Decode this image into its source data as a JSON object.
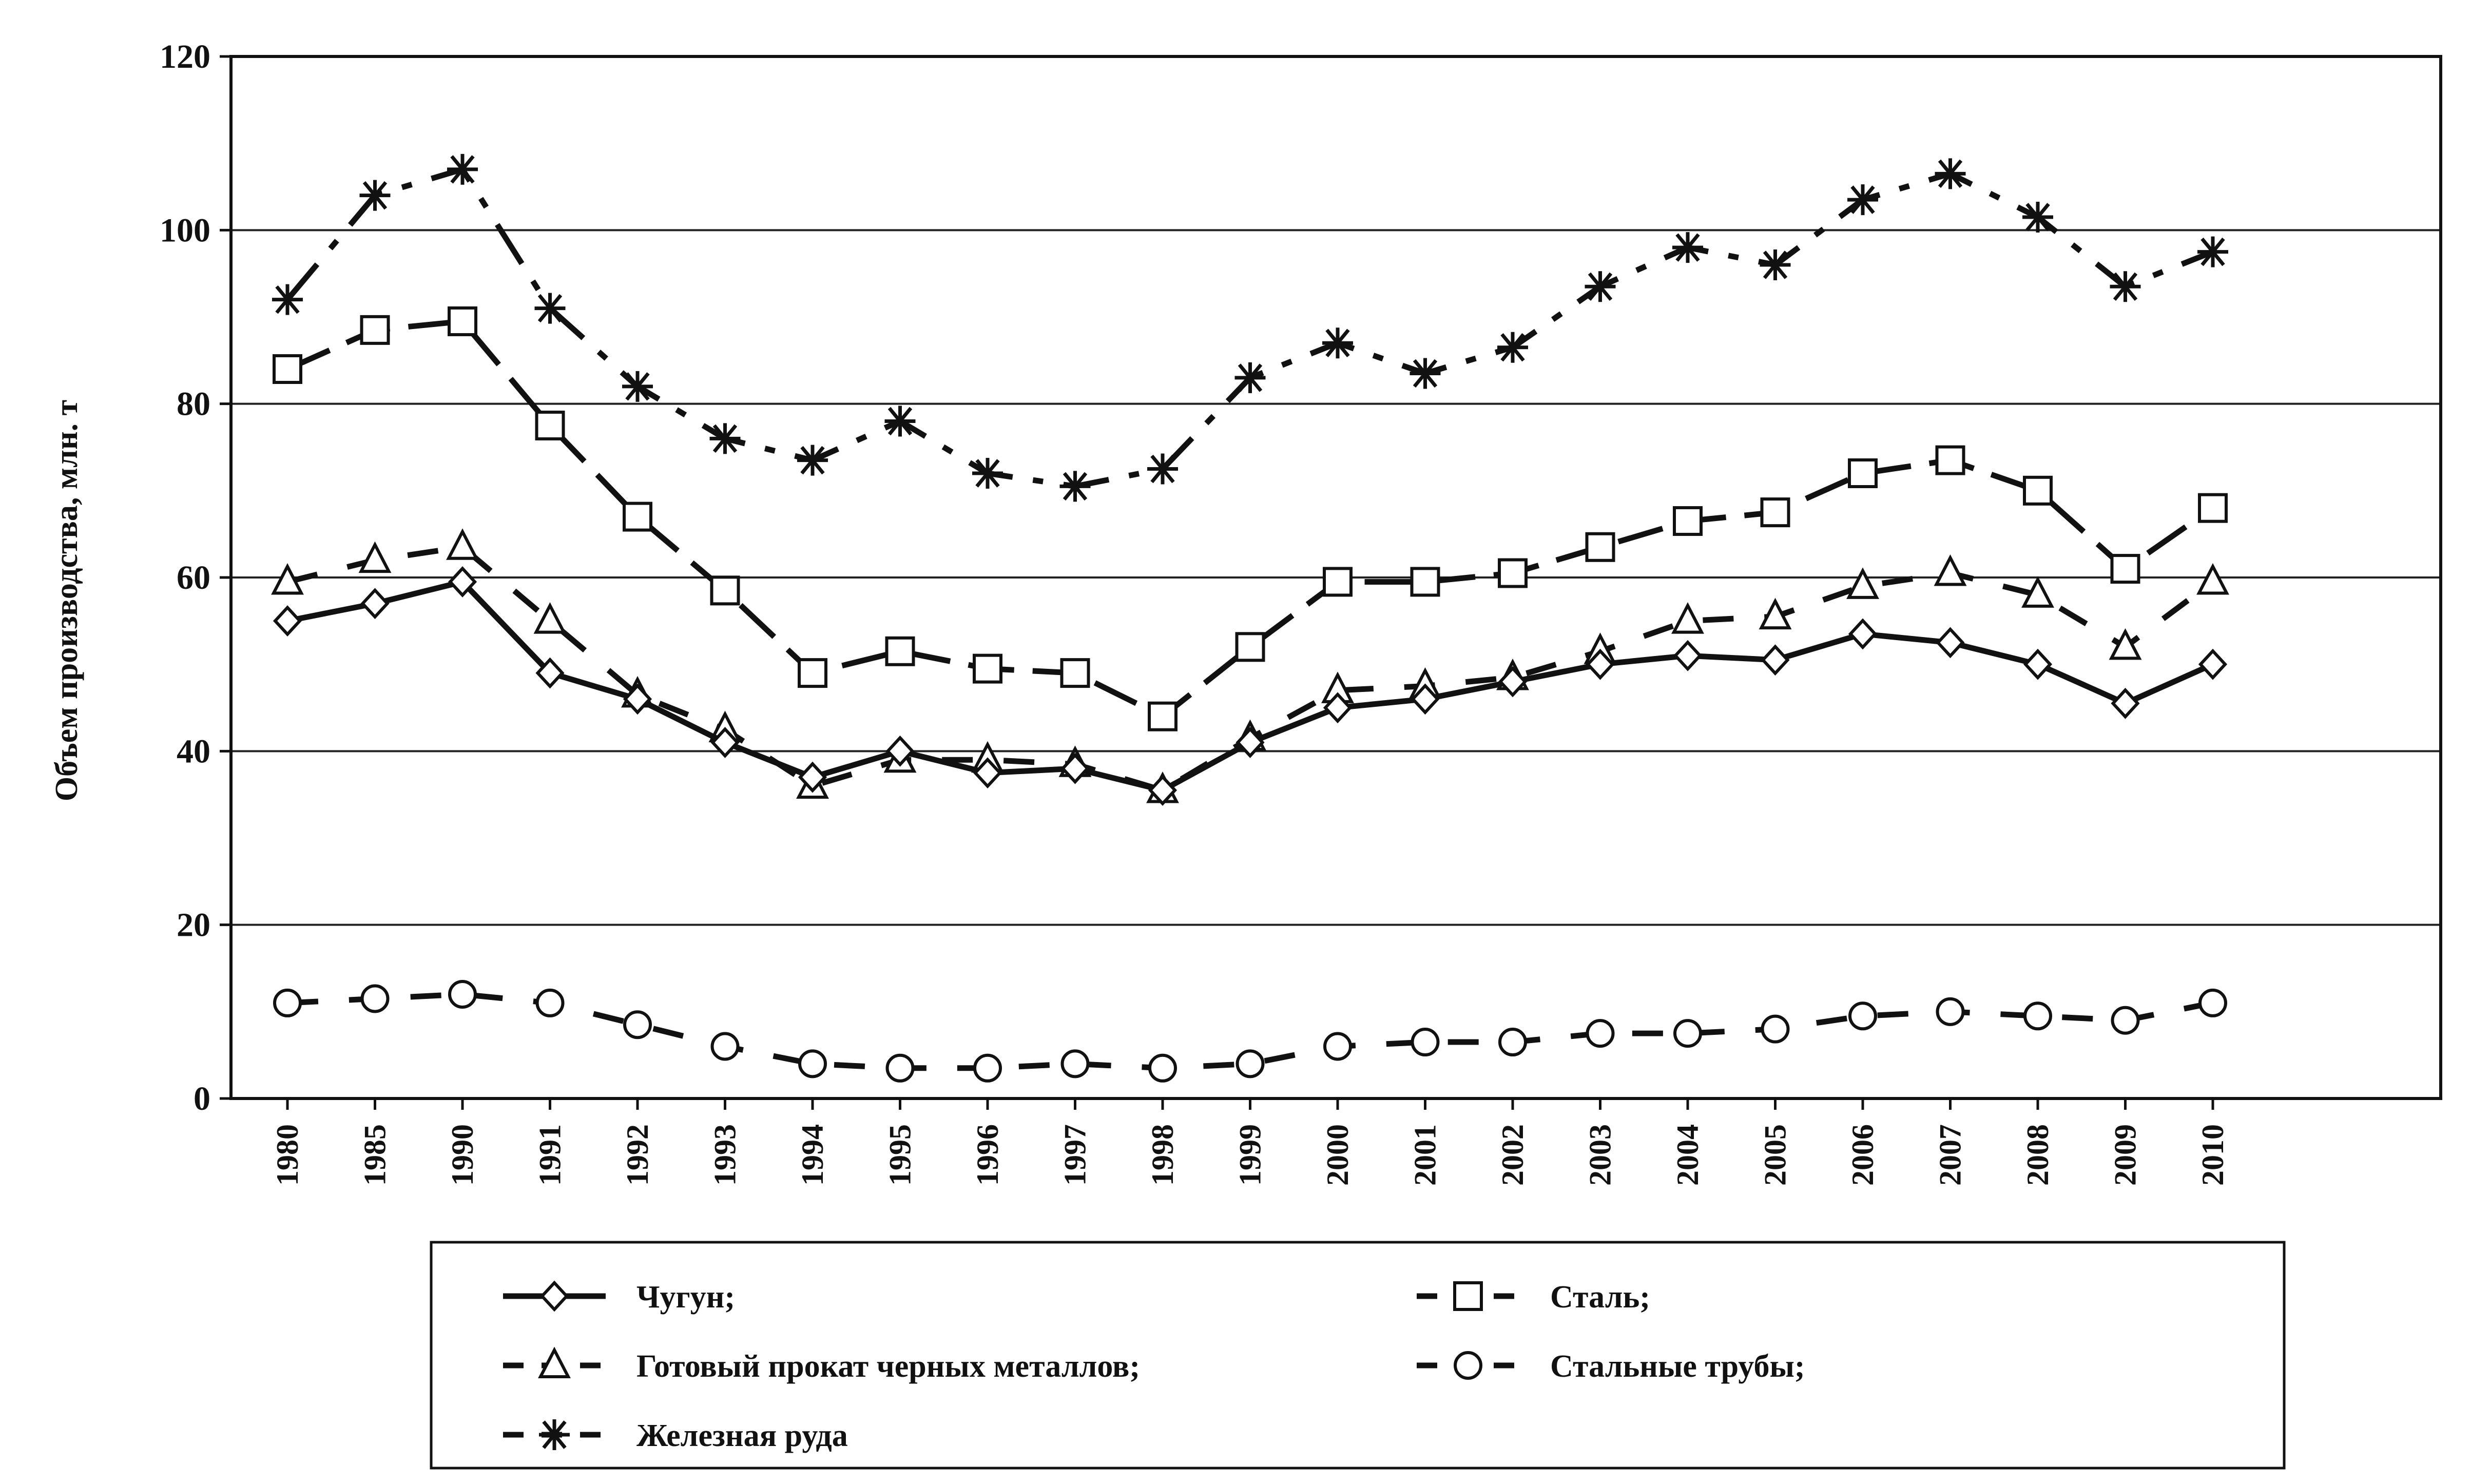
{
  "chart_data": {
    "type": "line",
    "title": "",
    "xlabel": "",
    "ylabel": "Объем производства, млн. т",
    "ylim": [
      0,
      120
    ],
    "yticks": [
      0,
      20,
      40,
      60,
      80,
      100,
      120
    ],
    "grid": "horizontal",
    "legend_position": "bottom",
    "categories": [
      "1980",
      "1985",
      "1990",
      "1991",
      "1992",
      "1993",
      "1994",
      "1995",
      "1996",
      "1997",
      "1998",
      "1999",
      "2000",
      "2001",
      "2002",
      "2003",
      "2004",
      "2005",
      "2006",
      "2007",
      "2008",
      "2009",
      "2010"
    ],
    "series": [
      {
        "name": "Чугун;",
        "marker": "diamond",
        "dash": "solid",
        "values": [
          55,
          57,
          59.5,
          49,
          46,
          41,
          37,
          40,
          37.5,
          38,
          35.5,
          41,
          45,
          46,
          48,
          50,
          51,
          50.5,
          53.5,
          52.5,
          50,
          45.5,
          50
        ]
      },
      {
        "name": "Сталь;",
        "marker": "square",
        "dash": "long",
        "values": [
          84,
          88.5,
          89.5,
          77.5,
          67,
          58.5,
          49,
          51.5,
          49.5,
          49,
          44,
          52,
          59.5,
          59.5,
          60.5,
          63.5,
          66.5,
          67.5,
          72,
          73.5,
          70,
          61,
          68
        ]
      },
      {
        "name": "Готовый прокат черных металлов;",
        "marker": "triangle",
        "dash": "dashed",
        "values": [
          59.5,
          62,
          63.5,
          55,
          46.5,
          42.5,
          36,
          39,
          39,
          38.5,
          35.5,
          41.5,
          47,
          47.5,
          48.5,
          51.5,
          55,
          55.5,
          59,
          60.5,
          58,
          52,
          59.5
        ]
      },
      {
        "name": "Стальные трубы;",
        "marker": "circle",
        "dash": "dashed",
        "values": [
          11,
          11.5,
          12,
          11,
          8.5,
          6,
          4,
          3.5,
          3.5,
          4,
          3.5,
          4,
          6,
          6.5,
          6.5,
          7.5,
          7.5,
          8,
          9.5,
          10,
          9.5,
          9,
          11
        ]
      },
      {
        "name": "Железная руда",
        "marker": "asterisk",
        "dash": "dashdot",
        "values": [
          92,
          104,
          107,
          91,
          82,
          76,
          73.5,
          78,
          72,
          70.5,
          72.5,
          83,
          87,
          83.5,
          86.5,
          93.5,
          98,
          96,
          103.5,
          106.5,
          101.5,
          93.5,
          97.5
        ]
      }
    ]
  }
}
